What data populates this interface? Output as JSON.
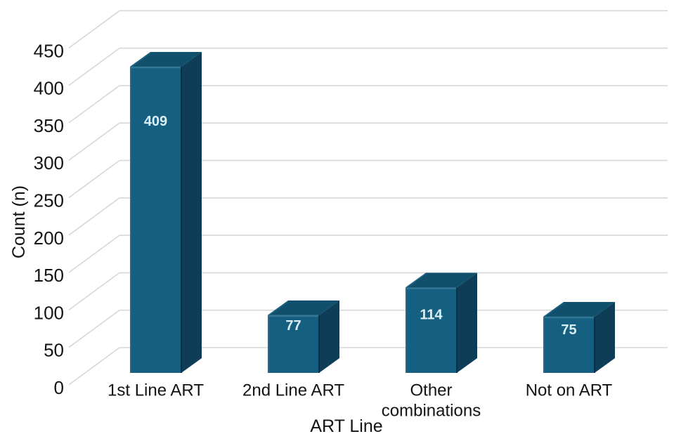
{
  "chart_data": {
    "type": "bar",
    "subtype": "3d-column",
    "title": "",
    "xlabel": "ART Line",
    "ylabel": "Count (n)",
    "categories": [
      "1st Line ART",
      "2nd Line ART",
      "Other\ncombinations",
      "Not on ART"
    ],
    "values": [
      409,
      77,
      114,
      75
    ],
    "bar_value_labels": [
      "409",
      "77",
      "114",
      "75"
    ],
    "yticks": [
      0,
      50,
      100,
      150,
      200,
      250,
      300,
      350,
      400,
      450
    ],
    "ylim": [
      0,
      450
    ],
    "grid": true,
    "legend": "none",
    "colors": {
      "bar_front": "#155F80",
      "bar_top": "#10506C",
      "bar_side": "#0E3D58",
      "bar_seam": "#0A2C42",
      "bar_bevel_top": "#3E7E9D",
      "bar_bevel_left": "#2B7093",
      "bar_value_text": "#DCEEF5",
      "gridline": "#D7D7D7",
      "text": "#141414",
      "background": "#FFFFFF"
    }
  }
}
